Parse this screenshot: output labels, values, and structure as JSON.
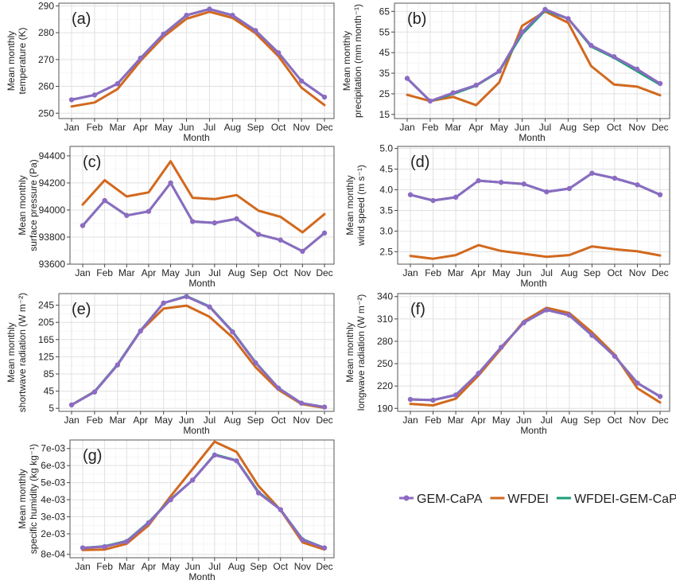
{
  "colors": {
    "GEM-CaPA": "#8c6bc2",
    "WFDEI": "#d2691e",
    "WFDEI-GEM-CaPA": "#1b9e77"
  },
  "legend": {
    "entries": [
      "GEM-CaPA",
      "WFDEI",
      "WFDEI-GEM-CaPA"
    ]
  },
  "chart_data": [
    {
      "type": "line",
      "tag": "(a)",
      "xlabel": "Month",
      "ylabel_lines": [
        "Mean monthly",
        "temperature (K)"
      ],
      "categories": [
        "Jan",
        "Feb",
        "Mar",
        "Apr",
        "May",
        "Jun",
        "Jul",
        "Aug",
        "Sep",
        "Oct",
        "Nov",
        "Dec"
      ],
      "ylim": [
        248,
        291
      ],
      "yticks": [
        250,
        260,
        270,
        280,
        290
      ],
      "ytick_labels": [
        "250",
        "260",
        "270",
        "280",
        "290"
      ],
      "series": [
        {
          "name": "GEM-CaPA",
          "values": [
            255,
            256.8,
            261,
            270.5,
            279.5,
            286.5,
            288.8,
            286.5,
            280.8,
            272.5,
            262,
            256
          ]
        },
        {
          "name": "WFDEI",
          "values": [
            252.5,
            254,
            259,
            269.5,
            278.5,
            285.2,
            287.8,
            285.5,
            279.8,
            271.2,
            259.5,
            253
          ]
        },
        {
          "name": "WFDEI-GEM-CaPA",
          "values": [
            255,
            256.8,
            261,
            270.5,
            279.5,
            286.5,
            288.8,
            286.5,
            280.8,
            272.5,
            262,
            256
          ]
        }
      ]
    },
    {
      "type": "line",
      "tag": "(b)",
      "xlabel": "Month",
      "ylabel_lines": [
        "Mean monthly",
        "precipitation (mm month⁻¹)"
      ],
      "categories": [
        "Jan",
        "Feb",
        "Mar",
        "Apr",
        "May",
        "Jun",
        "Jul",
        "Aug",
        "Sep",
        "Oct",
        "Nov",
        "Dec"
      ],
      "ylim": [
        13,
        69
      ],
      "yticks": [
        15,
        25,
        35,
        45,
        55,
        65
      ],
      "ytick_labels": [
        "15",
        "25",
        "35",
        "45",
        "55",
        "65"
      ],
      "series": [
        {
          "name": "GEM-CaPA",
          "values": [
            32.5,
            21.5,
            25.5,
            29.2,
            36,
            55,
            66,
            61.5,
            48.5,
            43,
            37,
            30
          ]
        },
        {
          "name": "WFDEI",
          "values": [
            24.5,
            21.5,
            23.5,
            19.5,
            30.5,
            58,
            65,
            59.5,
            38.5,
            29.5,
            28.5,
            24.3
          ]
        },
        {
          "name": "WFDEI-GEM-CaPA",
          "values": [
            32.5,
            21.5,
            25,
            29,
            35.8,
            54,
            65.5,
            61.5,
            48,
            42.5,
            36,
            29.5
          ]
        }
      ]
    },
    {
      "type": "line",
      "tag": "(c)",
      "xlabel": "Month",
      "ylabel_lines": [
        "Mean monthly",
        "surface pressure (Pa)"
      ],
      "categories": [
        "Jan",
        "Feb",
        "Mar",
        "Apr",
        "May",
        "Jun",
        "Jul",
        "Aug",
        "Sep",
        "Oct",
        "Nov",
        "Dec"
      ],
      "ylim": [
        93600,
        94470
      ],
      "yticks": [
        93600,
        93800,
        94000,
        94200,
        94400
      ],
      "ytick_labels": [
        "93600",
        "93800",
        "94000",
        "94200",
        "94400"
      ],
      "series": [
        {
          "name": "GEM-CaPA",
          "values": [
            93885,
            94070,
            93960,
            93990,
            94200,
            93915,
            93905,
            93935,
            93820,
            93778,
            93695,
            93830
          ]
        },
        {
          "name": "WFDEI",
          "values": [
            94040,
            94220,
            94100,
            94130,
            94360,
            94090,
            94080,
            94110,
            93995,
            93950,
            93835,
            93970
          ]
        },
        {
          "name": "WFDEI-GEM-CaPA",
          "values": [
            93885,
            94070,
            93960,
            93990,
            94200,
            93915,
            93905,
            93935,
            93820,
            93778,
            93695,
            93830
          ]
        }
      ]
    },
    {
      "type": "line",
      "tag": "(d)",
      "xlabel": "Month",
      "ylabel_lines": [
        "Mean monthly",
        "wind speed (m s⁻¹)"
      ],
      "categories": [
        "Jan",
        "Feb",
        "Mar",
        "Apr",
        "May",
        "Jun",
        "Jul",
        "Aug",
        "Sep",
        "Oct",
        "Nov",
        "Dec"
      ],
      "ylim": [
        2.2,
        5.05
      ],
      "yticks": [
        2.5,
        3.0,
        3.5,
        4.0,
        4.5,
        5.0
      ],
      "ytick_labels": [
        "2.5",
        "3.0",
        "3.5",
        "4.0",
        "4.5",
        "5.0"
      ],
      "series": [
        {
          "name": "GEM-CaPA",
          "values": [
            3.88,
            3.74,
            3.82,
            4.22,
            4.18,
            4.14,
            3.95,
            4.03,
            4.4,
            4.28,
            4.12,
            3.88
          ]
        },
        {
          "name": "WFDEI",
          "values": [
            2.4,
            2.33,
            2.42,
            2.66,
            2.52,
            2.45,
            2.38,
            2.42,
            2.63,
            2.56,
            2.51,
            2.41
          ]
        },
        {
          "name": "WFDEI-GEM-CaPA",
          "values": [
            3.88,
            3.74,
            3.82,
            4.22,
            4.18,
            4.14,
            3.95,
            4.03,
            4.4,
            4.28,
            4.12,
            3.88
          ]
        }
      ]
    },
    {
      "type": "line",
      "tag": "(e)",
      "xlabel": "Month",
      "ylabel_lines": [
        "Mean monthly",
        "shortwave radiation (W m⁻²)"
      ],
      "categories": [
        "Jan",
        "Feb",
        "Mar",
        "Apr",
        "May",
        "Jun",
        "Jul",
        "Aug",
        "Sep",
        "Oct",
        "Nov",
        "Dec"
      ],
      "ylim": [
        -2,
        272
      ],
      "yticks": [
        5,
        45,
        85,
        125,
        165,
        205,
        245
      ],
      "ytick_labels": [
        "5",
        "45",
        "85",
        "125",
        "165",
        "205",
        "245"
      ],
      "series": [
        {
          "name": "GEM-CaPA",
          "values": [
            13,
            43,
            106,
            185,
            250,
            265,
            241,
            183,
            111,
            52,
            17,
            8
          ]
        },
        {
          "name": "WFDEI",
          "values": [
            13,
            44,
            106,
            185,
            237,
            244,
            218,
            170,
            101,
            48,
            15,
            6
          ]
        },
        {
          "name": "WFDEI-GEM-CaPA",
          "values": [
            13,
            44,
            107,
            186,
            250,
            266,
            242,
            184,
            112,
            52,
            17,
            8
          ]
        }
      ]
    },
    {
      "type": "line",
      "tag": "(f)",
      "xlabel": "Month",
      "ylabel_lines": [
        "Mean monthly",
        "longwave radiation (W m⁻²)"
      ],
      "categories": [
        "Jan",
        "Feb",
        "Mar",
        "Apr",
        "May",
        "Jun",
        "Jul",
        "Aug",
        "Sep",
        "Oct",
        "Nov",
        "Dec"
      ],
      "ylim": [
        186,
        344
      ],
      "yticks": [
        190,
        220,
        250,
        280,
        310,
        340
      ],
      "ytick_labels": [
        "190",
        "220",
        "250",
        "280",
        "310",
        "340"
      ],
      "series": [
        {
          "name": "GEM-CaPA",
          "values": [
            202,
            201,
            208,
            237,
            272,
            305,
            322,
            315,
            288,
            260,
            224,
            206
          ]
        },
        {
          "name": "WFDEI",
          "values": [
            196,
            194,
            203,
            234,
            270,
            307,
            325,
            318,
            292,
            262,
            217,
            198
          ]
        },
        {
          "name": "WFDEI-GEM-CaPA",
          "values": [
            202,
            201,
            208,
            237,
            272,
            305,
            322,
            315,
            288,
            260,
            224,
            206
          ]
        }
      ]
    },
    {
      "type": "line",
      "tag": "(g)",
      "xlabel": "Month",
      "ylabel_lines": [
        "Mean monthly",
        "specific humidity (kg kg⁻¹)"
      ],
      "categories": [
        "Jan",
        "Feb",
        "Mar",
        "Apr",
        "May",
        "Jun",
        "Jul",
        "Aug",
        "Sep",
        "Oct",
        "Nov",
        "Dec"
      ],
      "ylim": [
        0.0006,
        0.0075
      ],
      "yticks": [
        0.0008,
        0.002,
        0.003,
        0.004,
        0.005,
        0.006,
        0.007
      ],
      "ytick_labels": [
        "8e-04",
        "2e-03",
        "3e-03",
        "4e-03",
        "5e-03",
        "6e-03",
        "7e-03"
      ],
      "series": [
        {
          "name": "GEM-CaPA",
          "values": [
            0.00118,
            0.00125,
            0.00155,
            0.00265,
            0.004,
            0.00515,
            0.00662,
            0.00628,
            0.0044,
            0.00342,
            0.00165,
            0.00118
          ]
        },
        {
          "name": "WFDEI",
          "values": [
            0.00105,
            0.00108,
            0.00142,
            0.0025,
            0.0042,
            0.0058,
            0.0074,
            0.0068,
            0.0048,
            0.0034,
            0.0015,
            0.00108
          ]
        },
        {
          "name": "WFDEI-GEM-CaPA",
          "values": [
            0.00118,
            0.00127,
            0.00158,
            0.00268,
            0.00402,
            0.00515,
            0.00665,
            0.0063,
            0.00445,
            0.00342,
            0.00168,
            0.00118
          ]
        }
      ]
    }
  ]
}
